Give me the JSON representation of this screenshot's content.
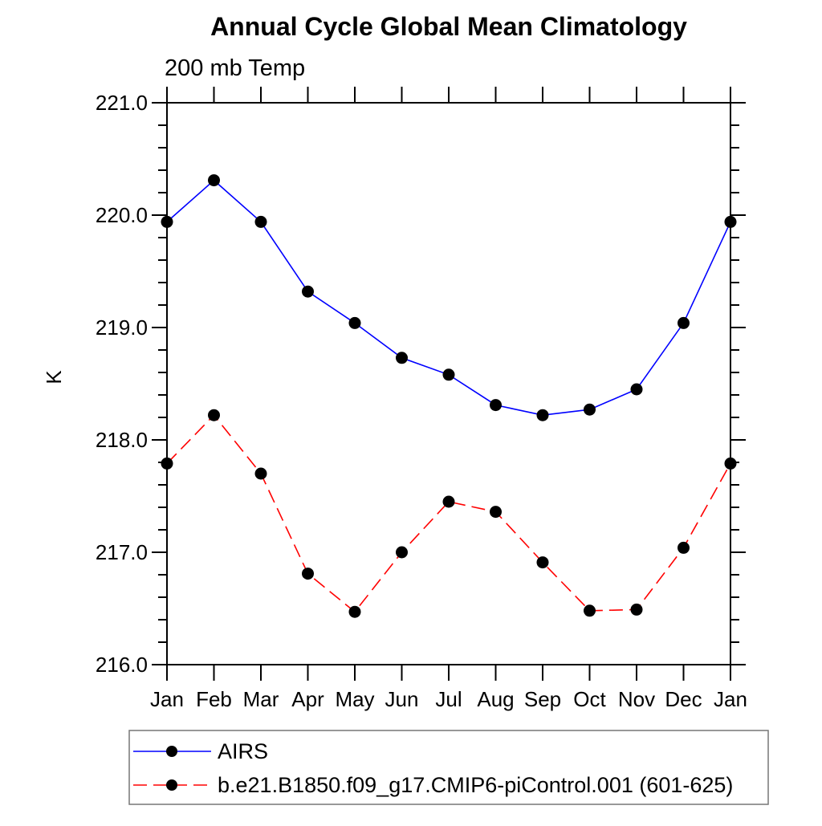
{
  "page": {
    "background": "#ffffff",
    "axis_color": "#000000"
  },
  "chart_data": {
    "type": "line",
    "title": "Annual Cycle Global Mean Climatology",
    "subtitle": "200 mb Temp",
    "ylabel": "K",
    "xlabel": "",
    "x_categories": [
      "Jan",
      "Feb",
      "Mar",
      "Apr",
      "May",
      "Jun",
      "Jul",
      "Aug",
      "Sep",
      "Oct",
      "Nov",
      "Dec",
      "Jan"
    ],
    "ylim": [
      216.0,
      221.0
    ],
    "y_major_step": 1.0,
    "y_minor_step": 0.2,
    "y_tick_labels": [
      "216.0",
      "217.0",
      "218.0",
      "219.0",
      "220.0",
      "221.0"
    ],
    "grid": false,
    "legend_position": "bottom-left",
    "series": [
      {
        "name": "AIRS",
        "color": "#0000ff",
        "line_style": "solid",
        "marker": "circle",
        "marker_color": "#000000",
        "values": [
          219.94,
          220.31,
          219.94,
          219.32,
          219.04,
          218.73,
          218.58,
          218.31,
          218.22,
          218.27,
          218.45,
          219.04,
          219.94
        ]
      },
      {
        "name": "b.e21.B1850.f09_g17.CMIP6-piControl.001 (601-625)",
        "color": "#ff0000",
        "line_style": "dashed",
        "marker": "circle",
        "marker_color": "#000000",
        "values": [
          217.79,
          218.22,
          217.7,
          216.81,
          216.47,
          217.0,
          217.45,
          217.36,
          216.91,
          216.48,
          216.49,
          217.04,
          217.79
        ]
      }
    ]
  }
}
